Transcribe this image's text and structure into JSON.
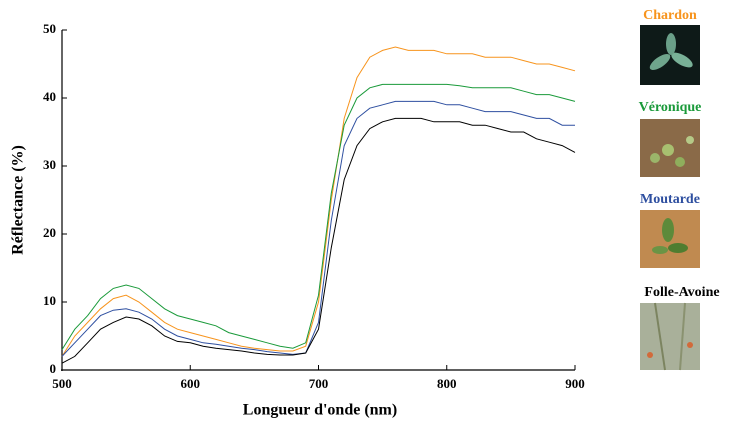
{
  "chart_data": {
    "type": "line",
    "xlabel": "Longueur d'onde (nm)",
    "ylabel": "Réflectance (%)",
    "xlim": [
      500,
      900
    ],
    "xticks": [
      500,
      600,
      700,
      800,
      900
    ],
    "ylim": [
      0,
      50
    ],
    "yticks": [
      0,
      10,
      20,
      30,
      40,
      50
    ],
    "x": [
      500,
      510,
      520,
      530,
      540,
      550,
      560,
      570,
      580,
      590,
      600,
      610,
      620,
      630,
      640,
      650,
      660,
      670,
      680,
      690,
      700,
      710,
      720,
      730,
      740,
      750,
      760,
      770,
      780,
      790,
      800,
      810,
      820,
      830,
      840,
      850,
      860,
      870,
      880,
      890,
      900
    ],
    "series": [
      {
        "name": "Chardon",
        "color": "#f7941d",
        "values": [
          2,
          5,
          7,
          9,
          10.5,
          11,
          10,
          8.5,
          7,
          6,
          5.5,
          5,
          4.5,
          4,
          3.5,
          3.2,
          3,
          2.8,
          2.8,
          3.5,
          10,
          25,
          37,
          43,
          46,
          47,
          47.5,
          47,
          47,
          47,
          46.5,
          46.5,
          46.5,
          46,
          46,
          46,
          45.5,
          45,
          45,
          44.5,
          44
        ]
      },
      {
        "name": "Véronique",
        "color": "#1a9a3a",
        "values": [
          3,
          6,
          8,
          10.5,
          12,
          12.5,
          12,
          10.5,
          9,
          8,
          7.5,
          7,
          6.5,
          5.5,
          5,
          4.5,
          4,
          3.5,
          3.2,
          4,
          11,
          26,
          36,
          40,
          41.5,
          42,
          42,
          42,
          42,
          42,
          42,
          41.8,
          41.5,
          41.5,
          41.5,
          41.5,
          41,
          40.5,
          40.5,
          40,
          39.5
        ]
      },
      {
        "name": "Moutarde",
        "color": "#2e4fa0",
        "values": [
          2,
          4,
          6,
          8,
          8.8,
          9,
          8.5,
          7.5,
          6,
          5,
          4.5,
          4,
          3.8,
          3.5,
          3.2,
          3,
          2.7,
          2.5,
          2.3,
          2.5,
          7,
          22,
          33,
          37,
          38.5,
          39,
          39.5,
          39.5,
          39.5,
          39.5,
          39,
          39,
          38.5,
          38,
          38,
          38,
          37.5,
          37,
          37,
          36,
          36
        ]
      },
      {
        "name": "Folle-Avoine",
        "color": "#000000",
        "values": [
          1,
          2,
          4,
          6,
          7,
          7.8,
          7.5,
          6.5,
          5,
          4.2,
          4,
          3.5,
          3.2,
          3,
          2.8,
          2.5,
          2.3,
          2.2,
          2.2,
          2.5,
          6,
          18,
          28,
          33,
          35.5,
          36.5,
          37,
          37,
          37,
          36.5,
          36.5,
          36.5,
          36,
          36,
          35.5,
          35,
          35,
          34,
          33.5,
          33,
          32
        ]
      }
    ]
  }
}
